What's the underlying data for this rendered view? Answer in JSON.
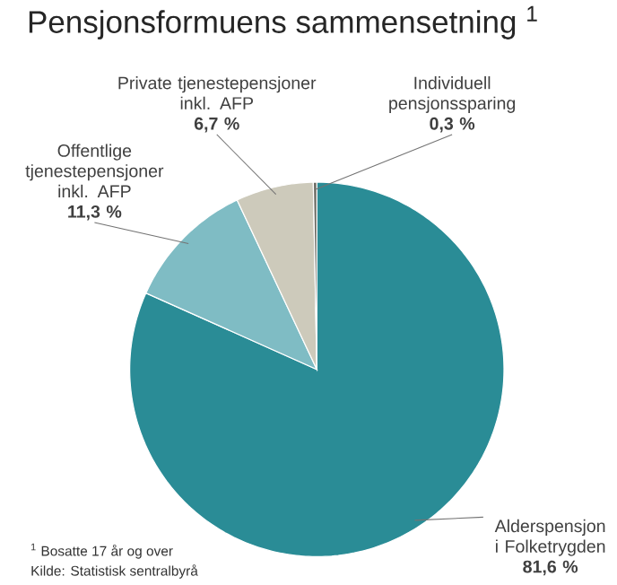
{
  "chart_data": {
    "type": "pie",
    "title": "Pensjonsformuens sammensetning $^{1}$",
    "categories": [
      "Alderspensjon i Folketrygden",
      "Offentlige tjenestepensjoner inkl. AFP",
      "Private tjenestepensjoner inkl. AFP",
      "Individuell pensjonssparing"
    ],
    "values": [
      81.6,
      11.3,
      6.7,
      0.3
    ],
    "value_labels": [
      "81,6 %",
      "11,3 %",
      "6,7 %",
      "0,3 %"
    ],
    "colors": [
      "#2a8c96",
      "#7fbcc4",
      "#cdcabb",
      "#6b6b63"
    ],
    "annotations": [
      "$^{1}$ Bosatte 17 år og over",
      "Kilde: Statistisk sentralbyrå"
    ]
  }
}
